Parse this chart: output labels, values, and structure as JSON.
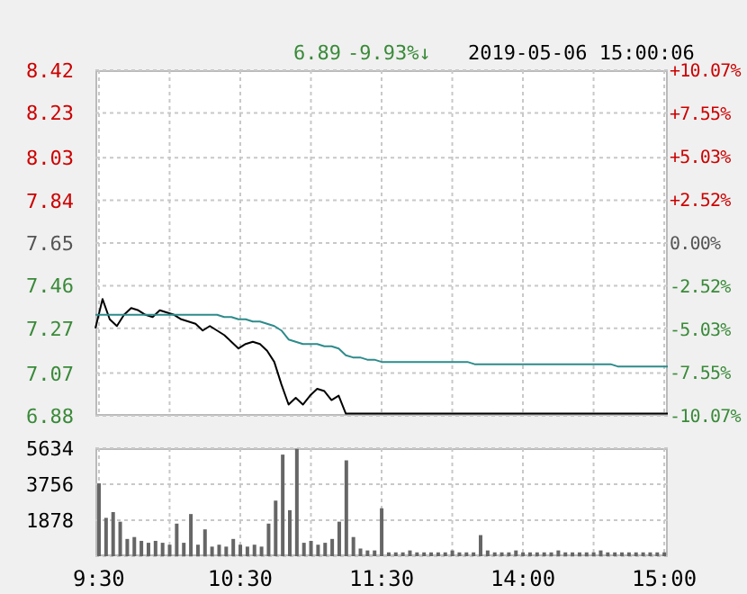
{
  "chart_data": [
    {
      "type": "line",
      "annotations": [
        "6.89",
        "-9.93%↓",
        "2019-05-06 15:00:06"
      ],
      "categories": [
        null,
        null,
        null,
        null,
        null,
        null,
        null,
        null,
        null,
        null,
        null,
        null,
        null,
        null,
        null,
        null,
        null,
        null,
        null,
        null,
        null,
        null,
        null,
        null,
        null,
        null,
        null,
        null,
        null,
        null,
        null,
        null,
        null,
        null,
        null,
        null,
        null,
        null,
        null,
        null,
        null,
        null,
        null,
        null,
        null,
        null,
        null,
        null,
        null,
        null,
        null,
        null,
        null,
        null,
        null,
        null,
        null,
        null,
        null,
        null,
        null,
        null,
        null,
        null,
        null,
        null,
        null,
        null,
        null,
        null,
        null,
        null,
        null,
        null,
        null,
        null,
        null,
        null,
        null,
        null,
        null
      ],
      "ylim": [
        6.88,
        8.42
      ],
      "yticks": [
        6.88,
        7.07,
        7.27,
        7.46,
        7.65,
        7.84,
        8.03,
        8.23,
        8.42
      ],
      "y2lim": [
        -10.07,
        10.07
      ],
      "y2ticks": [
        {
          "value": -10.07,
          "label": "-10.07%"
        },
        {
          "value": -7.55,
          "label": "-7.55%"
        },
        {
          "value": -5.03,
          "label": "-5.03%"
        },
        {
          "value": -2.52,
          "label": "-2.52%"
        },
        {
          "value": 0,
          "label": "0.00%"
        },
        {
          "value": 2.52,
          "label": "+2.52%"
        },
        {
          "value": 5.03,
          "label": "+5.03%"
        },
        {
          "value": 7.55,
          "label": "+7.55%"
        },
        {
          "value": 10.07,
          "label": "+10.07%"
        }
      ],
      "grid": true,
      "series": [
        {
          "color": "#000000",
          "values": [
            7.27,
            7.4,
            7.31,
            7.28,
            7.33,
            7.36,
            7.35,
            7.33,
            7.32,
            7.35,
            7.34,
            7.33,
            7.31,
            7.3,
            7.29,
            7.26,
            7.28,
            7.26,
            7.24,
            7.21,
            7.18,
            7.2,
            7.21,
            7.2,
            7.17,
            7.12,
            7.02,
            6.93,
            6.96,
            6.93,
            6.97,
            7.0,
            6.99,
            6.95,
            6.97,
            6.89,
            6.89,
            6.89,
            6.89,
            6.89,
            6.89,
            6.89,
            6.89,
            6.89,
            6.89,
            6.89,
            6.89,
            6.89,
            6.89,
            6.89,
            6.89,
            6.89,
            6.89,
            6.89,
            6.89,
            6.89,
            6.89,
            6.89,
            6.89,
            6.89,
            6.89,
            6.89,
            6.89,
            6.89,
            6.89,
            6.89,
            6.89,
            6.89,
            6.89,
            6.89,
            6.89,
            6.89,
            6.89,
            6.89,
            6.89,
            6.89,
            6.89,
            6.89,
            6.89,
            6.89,
            6.89
          ]
        },
        {
          "color": "#2e8b8b",
          "values": [
            7.33,
            7.33,
            7.33,
            7.33,
            7.33,
            7.33,
            7.33,
            7.33,
            7.33,
            7.33,
            7.33,
            7.33,
            7.33,
            7.33,
            7.33,
            7.33,
            7.33,
            7.33,
            7.32,
            7.32,
            7.31,
            7.31,
            7.3,
            7.3,
            7.29,
            7.28,
            7.26,
            7.22,
            7.21,
            7.2,
            7.2,
            7.2,
            7.19,
            7.19,
            7.18,
            7.15,
            7.14,
            7.14,
            7.13,
            7.13,
            7.12,
            7.12,
            7.12,
            7.12,
            7.12,
            7.12,
            7.12,
            7.12,
            7.12,
            7.12,
            7.12,
            7.12,
            7.12,
            7.11,
            7.11,
            7.11,
            7.11,
            7.11,
            7.11,
            7.11,
            7.11,
            7.11,
            7.11,
            7.11,
            7.11,
            7.11,
            7.11,
            7.11,
            7.11,
            7.11,
            7.11,
            7.11,
            7.11,
            7.1,
            7.1,
            7.1,
            7.1,
            7.1,
            7.1,
            7.1,
            7.1
          ]
        }
      ]
    },
    {
      "type": "bar",
      "categories": [
        "9:30",
        null,
        null,
        null,
        null,
        null,
        null,
        null,
        null,
        null,
        null,
        null,
        null,
        null,
        null,
        null,
        null,
        null,
        null,
        null,
        "10:30",
        null,
        null,
        null,
        null,
        null,
        null,
        null,
        null,
        null,
        null,
        null,
        null,
        null,
        null,
        null,
        null,
        null,
        null,
        null,
        "11:30",
        null,
        null,
        null,
        null,
        null,
        null,
        null,
        null,
        null,
        null,
        null,
        null,
        null,
        null,
        null,
        null,
        null,
        null,
        null,
        "14:00",
        null,
        null,
        null,
        null,
        null,
        null,
        null,
        null,
        null,
        null,
        null,
        null,
        null,
        null,
        null,
        null,
        null,
        null,
        null,
        "15:00"
      ],
      "ylim": [
        0,
        5634
      ],
      "yticks": [
        1878,
        3756,
        5634
      ],
      "grid": true,
      "series": [
        {
          "color": "#666666",
          "values": [
            3800,
            2000,
            2300,
            1800,
            900,
            1000,
            800,
            700,
            800,
            700,
            600,
            1700,
            700,
            2200,
            600,
            1400,
            500,
            600,
            500,
            900,
            600,
            500,
            600,
            500,
            1700,
            2900,
            5300,
            2400,
            5600,
            700,
            800,
            600,
            700,
            900,
            1800,
            5000,
            1000,
            400,
            300,
            300,
            2500,
            200,
            200,
            200,
            300,
            200,
            200,
            200,
            200,
            200,
            300,
            200,
            200,
            200,
            1100,
            300,
            200,
            200,
            200,
            300,
            200,
            200,
            200,
            200,
            200,
            300,
            200,
            200,
            200,
            200,
            200,
            300,
            200,
            200,
            200,
            200,
            200,
            200,
            200,
            200,
            200
          ]
        }
      ]
    }
  ]
}
